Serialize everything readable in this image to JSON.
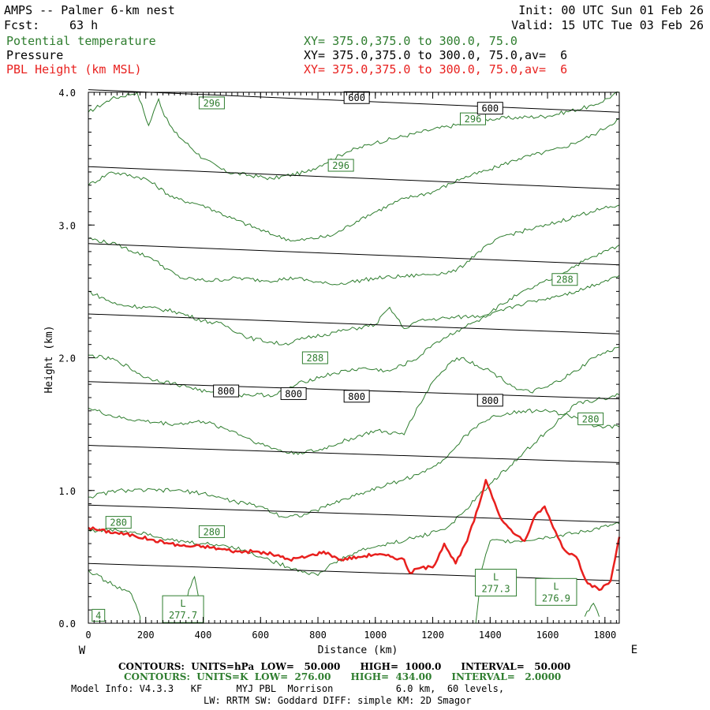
{
  "header": {
    "title": "AMPS -- Palmer 6-km nest",
    "init": "Init: 00 UTC Sun 01 Feb 26",
    "fcst_label": "Fcst:",
    "fcst_value": "63 h",
    "valid": "Valid: 15 UTC Tue 03 Feb 26",
    "fields": [
      {
        "name": "Potential temperature",
        "xy": "XY= 375.0,375.0 to 300.0, 75.0",
        "color": "#2e7d2e"
      },
      {
        "name": "Pressure",
        "xy": "XY= 375.0,375.0 to 300.0, 75.0,av=  6",
        "color": "#000000"
      },
      {
        "name": "PBL Height (km MSL)",
        "xy": "XY= 375.0,375.0 to 300.0, 75.0,av=  6",
        "color": "#e8201e"
      }
    ]
  },
  "footer": {
    "contours_pressure": "CONTOURS:  UNITS=hPa  LOW=   50.000      HIGH=  1000.0      INTERVAL=   50.000",
    "contours_theta": "CONTOURS:  UNITS=K  LOW=  276.00      HIGH=  434.00      INTERVAL=   2.0000",
    "model_line1": "Model Info: V4.3.3   KF      MYJ PBL  Morrison           6.0 km,  60 levels,",
    "model_line2": "LW: RRTM SW: Goddard DIFF: simple KM: 2D Smagor"
  },
  "chart_data": {
    "type": "line",
    "title": "AMPS -- Palmer 6-km nest",
    "xlabel": "Distance (km)",
    "ylabel": "Height (km)",
    "xlim": [
      0,
      1850
    ],
    "ylim": [
      0,
      4.0
    ],
    "x_ticks": [
      0,
      200,
      400,
      600,
      800,
      1000,
      1200,
      1400,
      1600,
      1800
    ],
    "x_tick_labels": [
      "0",
      "200",
      "400",
      "600",
      "800",
      "1000",
      "1200",
      "1400",
      "1600",
      "1800"
    ],
    "y_ticks": [
      0,
      1,
      2,
      3,
      4
    ],
    "y_tick_labels": [
      "0.0",
      "1.0",
      "2.0",
      "3.0",
      "4.0"
    ],
    "left_end_label": "W",
    "right_end_label": "E",
    "colors": {
      "theta": "#2e7d2e",
      "pressure": "#000000",
      "pbl": "#e8201e"
    },
    "pressure_isobars": [
      {
        "y0": 0.45,
        "y1": 0.32
      },
      {
        "y0": 0.89,
        "y1": 0.76
      },
      {
        "y0": 1.34,
        "y1": 1.21
      },
      {
        "y0": 1.82,
        "y1": 1.69
      },
      {
        "y0": 2.33,
        "y1": 2.18
      },
      {
        "y0": 2.86,
        "y1": 2.7
      },
      {
        "y0": 3.44,
        "y1": 3.27
      },
      {
        "y0": 4.02,
        "y1": 3.85
      }
    ],
    "theta_contours": [
      [
        [
          0,
          3.85
        ],
        [
          80,
          3.95
        ],
        [
          170,
          4.0
        ],
        [
          210,
          3.75
        ],
        [
          245,
          3.95
        ],
        [
          265,
          3.82
        ],
        [
          300,
          3.7
        ],
        [
          400,
          3.5
        ],
        [
          480,
          3.4
        ],
        [
          640,
          3.35
        ],
        [
          760,
          3.4
        ],
        [
          900,
          3.55
        ],
        [
          1000,
          3.62
        ],
        [
          1200,
          3.72
        ],
        [
          1400,
          3.8
        ],
        [
          1600,
          3.82
        ],
        [
          1760,
          3.9
        ],
        [
          1850,
          4.0
        ]
      ],
      [
        [
          0,
          3.3
        ],
        [
          80,
          3.4
        ],
        [
          200,
          3.35
        ],
        [
          300,
          3.2
        ],
        [
          400,
          3.15
        ],
        [
          500,
          3.05
        ],
        [
          650,
          2.92
        ],
        [
          720,
          2.88
        ],
        [
          850,
          2.92
        ],
        [
          950,
          3.05
        ],
        [
          1100,
          3.2
        ],
        [
          1200,
          3.25
        ],
        [
          1300,
          3.35
        ],
        [
          1400,
          3.42
        ],
        [
          1500,
          3.5
        ],
        [
          1650,
          3.58
        ],
        [
          1760,
          3.68
        ],
        [
          1850,
          3.8
        ]
      ],
      [
        [
          0,
          2.9
        ],
        [
          100,
          2.85
        ],
        [
          220,
          2.75
        ],
        [
          320,
          2.6
        ],
        [
          420,
          2.58
        ],
        [
          520,
          2.6
        ],
        [
          620,
          2.58
        ],
        [
          720,
          2.6
        ],
        [
          850,
          2.55
        ],
        [
          1000,
          2.6
        ],
        [
          1150,
          2.62
        ],
        [
          1280,
          2.65
        ],
        [
          1360,
          2.8
        ],
        [
          1450,
          2.92
        ],
        [
          1600,
          3.0
        ],
        [
          1750,
          3.1
        ],
        [
          1850,
          3.15
        ]
      ],
      [
        [
          0,
          2.5
        ],
        [
          100,
          2.4
        ],
        [
          200,
          2.38
        ],
        [
          300,
          2.35
        ],
        [
          400,
          2.28
        ],
        [
          470,
          2.25
        ],
        [
          560,
          2.15
        ],
        [
          680,
          2.1
        ],
        [
          760,
          2.15
        ],
        [
          880,
          2.2
        ],
        [
          1000,
          2.25
        ],
        [
          1050,
          2.38
        ],
        [
          1100,
          2.22
        ],
        [
          1150,
          2.28
        ],
        [
          1250,
          2.3
        ],
        [
          1380,
          2.32
        ],
        [
          1500,
          2.48
        ],
        [
          1620,
          2.6
        ],
        [
          1700,
          2.7
        ],
        [
          1850,
          2.85
        ]
      ],
      [
        [
          0,
          2.02
        ],
        [
          100,
          1.98
        ],
        [
          200,
          1.85
        ],
        [
          350,
          1.78
        ],
        [
          450,
          1.72
        ],
        [
          550,
          1.72
        ],
        [
          650,
          1.72
        ],
        [
          750,
          1.82
        ],
        [
          850,
          1.88
        ],
        [
          950,
          1.92
        ],
        [
          1050,
          1.9
        ],
        [
          1150,
          2.0
        ],
        [
          1200,
          2.1
        ],
        [
          1300,
          2.22
        ],
        [
          1400,
          2.32
        ],
        [
          1500,
          2.4
        ],
        [
          1600,
          2.45
        ],
        [
          1700,
          2.5
        ],
        [
          1850,
          2.62
        ]
      ],
      [
        [
          0,
          1.62
        ],
        [
          100,
          1.55
        ],
        [
          200,
          1.52
        ],
        [
          300,
          1.5
        ],
        [
          400,
          1.52
        ],
        [
          500,
          1.45
        ],
        [
          600,
          1.35
        ],
        [
          700,
          1.28
        ],
        [
          800,
          1.3
        ],
        [
          900,
          1.38
        ],
        [
          1000,
          1.45
        ],
        [
          1100,
          1.42
        ],
        [
          1120,
          1.52
        ],
        [
          1200,
          1.82
        ],
        [
          1260,
          1.96
        ],
        [
          1300,
          2.0
        ],
        [
          1400,
          1.9
        ],
        [
          1500,
          1.76
        ],
        [
          1540,
          1.74
        ],
        [
          1600,
          1.78
        ],
        [
          1700,
          1.9
        ],
        [
          1760,
          2.0
        ],
        [
          1850,
          2.08
        ]
      ],
      [
        [
          0,
          0.95
        ],
        [
          100,
          1.0
        ],
        [
          200,
          1.0
        ],
        [
          300,
          1.0
        ],
        [
          400,
          0.98
        ],
        [
          500,
          0.92
        ],
        [
          600,
          0.88
        ],
        [
          680,
          0.8
        ],
        [
          760,
          0.82
        ],
        [
          850,
          0.9
        ],
        [
          950,
          0.98
        ],
        [
          1050,
          1.05
        ],
        [
          1150,
          1.12
        ],
        [
          1250,
          1.25
        ],
        [
          1300,
          1.38
        ],
        [
          1360,
          1.5
        ],
        [
          1420,
          1.56
        ],
        [
          1500,
          1.6
        ],
        [
          1600,
          1.6
        ],
        [
          1700,
          1.55
        ],
        [
          1760,
          1.48
        ],
        [
          1850,
          1.48
        ]
      ],
      [
        [
          0,
          0.7
        ],
        [
          100,
          0.7
        ],
        [
          200,
          0.68
        ],
        [
          300,
          0.62
        ],
        [
          400,
          0.6
        ],
        [
          500,
          0.58
        ],
        [
          600,
          0.5
        ],
        [
          700,
          0.42
        ],
        [
          800,
          0.36
        ],
        [
          850,
          0.45
        ],
        [
          950,
          0.55
        ],
        [
          1050,
          0.6
        ],
        [
          1150,
          0.65
        ],
        [
          1250,
          0.72
        ],
        [
          1300,
          0.82
        ],
        [
          1400,
          1.05
        ],
        [
          1500,
          1.25
        ],
        [
          1600,
          1.45
        ],
        [
          1700,
          1.65
        ],
        [
          1850,
          1.72
        ]
      ],
      [
        [
          1350,
          0.0
        ],
        [
          1370,
          0.4
        ],
        [
          1400,
          0.62
        ],
        [
          1500,
          0.62
        ],
        [
          1600,
          0.65
        ],
        [
          1700,
          0.68
        ],
        [
          1850,
          0.75
        ]
      ],
      [
        [
          0,
          0.4
        ],
        [
          60,
          0.32
        ],
        [
          150,
          0.22
        ],
        [
          180,
          0.05
        ],
        [
          180,
          0.0
        ]
      ],
      [
        [
          330,
          0.0
        ],
        [
          350,
          0.25
        ],
        [
          370,
          0.35
        ],
        [
          390,
          0.12
        ],
        [
          400,
          0.0
        ]
      ],
      [
        [
          1730,
          0.05
        ],
        [
          1760,
          0.15
        ],
        [
          1780,
          0.05
        ]
      ]
    ],
    "pbl_height": {
      "name": "PBL Height (km MSL)",
      "x": [
        0,
        40,
        100,
        160,
        220,
        280,
        340,
        400,
        460,
        520,
        580,
        640,
        700,
        760,
        820,
        880,
        940,
        1000,
        1060,
        1100,
        1120,
        1160,
        1200,
        1240,
        1280,
        1320,
        1360,
        1385,
        1400,
        1440,
        1480,
        1520,
        1560,
        1590,
        1620,
        1660,
        1700,
        1740,
        1780,
        1820,
        1850
      ],
      "y": [
        0.72,
        0.7,
        0.68,
        0.66,
        0.63,
        0.6,
        0.58,
        0.58,
        0.56,
        0.54,
        0.54,
        0.52,
        0.48,
        0.5,
        0.54,
        0.48,
        0.5,
        0.52,
        0.5,
        0.48,
        0.38,
        0.42,
        0.42,
        0.6,
        0.45,
        0.62,
        0.88,
        1.08,
        1.0,
        0.78,
        0.68,
        0.62,
        0.82,
        0.88,
        0.72,
        0.55,
        0.5,
        0.3,
        0.25,
        0.32,
        0.65
      ]
    },
    "annotations": [
      {
        "text": "296",
        "x": 430,
        "y": 3.92,
        "color": "#2e7d2e"
      },
      {
        "text": "296",
        "x": 1340,
        "y": 3.8,
        "color": "#2e7d2e"
      },
      {
        "text": "296",
        "x": 880,
        "y": 3.45,
        "color": "#2e7d2e"
      },
      {
        "text": "600",
        "x": 935,
        "y": 3.96,
        "color": "#000000"
      },
      {
        "text": "600",
        "x": 1400,
        "y": 3.88,
        "color": "#000000"
      },
      {
        "text": "288",
        "x": 1660,
        "y": 2.59,
        "color": "#2e7d2e"
      },
      {
        "text": "288",
        "x": 790,
        "y": 2.0,
        "color": "#2e7d2e"
      },
      {
        "text": "800",
        "x": 480,
        "y": 1.75,
        "color": "#000000"
      },
      {
        "text": "800",
        "x": 715,
        "y": 1.73,
        "color": "#000000"
      },
      {
        "text": "800",
        "x": 935,
        "y": 1.71,
        "color": "#000000"
      },
      {
        "text": "800",
        "x": 1400,
        "y": 1.68,
        "color": "#000000"
      },
      {
        "text": "280",
        "x": 1750,
        "y": 1.54,
        "color": "#2e7d2e"
      },
      {
        "text": "280",
        "x": 105,
        "y": 0.76,
        "color": "#2e7d2e"
      },
      {
        "text": "280",
        "x": 430,
        "y": 0.69,
        "color": "#2e7d2e"
      },
      {
        "text": "4",
        "x": 35,
        "y": 0.06,
        "color": "#2e7d2e"
      }
    ],
    "lows": [
      {
        "letter": "L",
        "value": "277.3",
        "x": 1420,
        "y": 0.3,
        "color": "#2e7d2e"
      },
      {
        "letter": "L",
        "value": "276.9",
        "x": 1630,
        "y": 0.23,
        "color": "#2e7d2e"
      },
      {
        "letter": "L",
        "value": "277.7",
        "x": 330,
        "y": 0.1,
        "color": "#2e7d2e"
      }
    ]
  }
}
